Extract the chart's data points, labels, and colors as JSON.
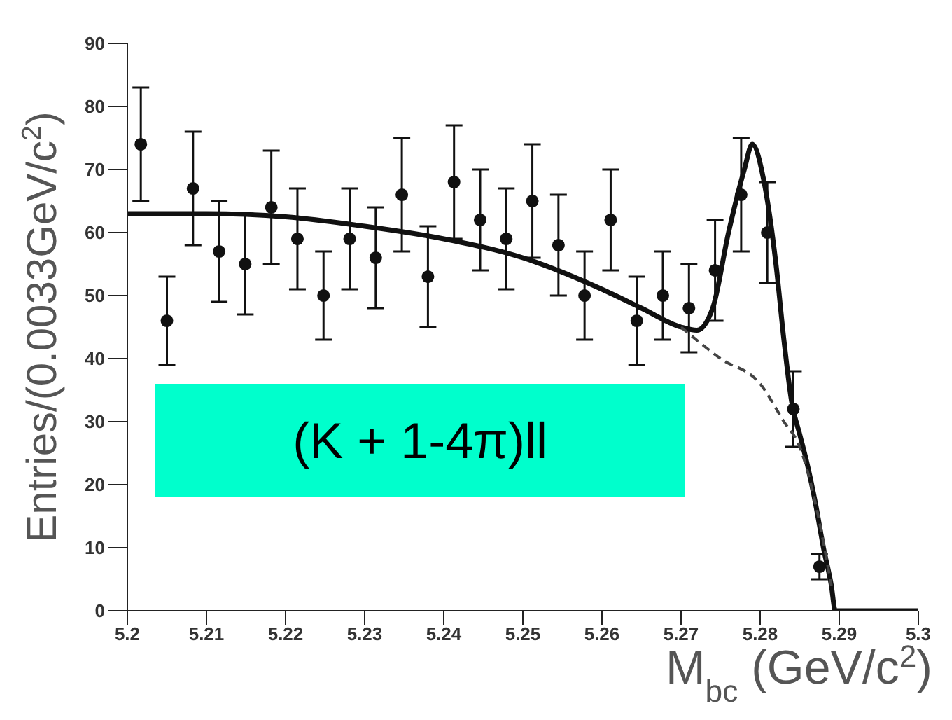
{
  "chart_data": {
    "type": "scatter",
    "xlabel": "M$_{bc}$ (GeV/c$^{2}$)",
    "ylabel": "Entries/(0.0033GeV/c$^{2}$)",
    "xlim": [
      5.2,
      5.3
    ],
    "xticks": [
      5.2,
      5.21,
      5.22,
      5.23,
      5.24,
      5.25,
      5.26,
      5.27,
      5.28,
      5.29,
      5.3
    ],
    "ylim": [
      0,
      90
    ],
    "yticks": [
      0,
      10,
      20,
      30,
      40,
      50,
      60,
      70,
      80,
      90
    ],
    "marker": "circle",
    "annotations": [
      "(K + 1-4π)ll"
    ],
    "series": [
      {
        "color": "#111111",
        "x": [
          5.2017,
          5.205,
          5.2083,
          5.2116,
          5.2149,
          5.2182,
          5.2215,
          5.2248,
          5.2281,
          5.2314,
          5.2347,
          5.238,
          5.2413,
          5.2446,
          5.2479,
          5.2512,
          5.2545,
          5.2578,
          5.2611,
          5.2644,
          5.2677,
          5.271,
          5.2743,
          5.2776,
          5.2809,
          5.2842,
          5.2875
        ],
        "values": [
          74,
          46,
          67,
          57,
          55,
          64,
          59,
          50,
          59,
          56,
          66,
          53,
          68,
          62,
          59,
          65,
          58,
          50,
          62,
          46,
          50,
          48,
          54,
          66,
          60,
          32,
          7
        ],
        "errors": [
          9,
          7,
          9,
          8,
          8,
          9,
          8,
          7,
          8,
          8,
          9,
          8,
          9,
          8,
          8,
          9,
          8,
          7,
          8,
          7,
          7,
          7,
          8,
          9,
          8,
          6,
          2
        ]
      },
      {
        "type": "line",
        "color": "#111111",
        "line_style": "solid",
        "marker": "none",
        "x": [
          5.2,
          5.21,
          5.22,
          5.23,
          5.24,
          5.25,
          5.26,
          5.265,
          5.27,
          5.272,
          5.274,
          5.276,
          5.278,
          5.279,
          5.2805,
          5.282,
          5.283,
          5.284,
          5.285,
          5.286,
          5.287,
          5.288,
          5.289,
          5.2895,
          5.3
        ],
        "values": [
          63,
          63,
          62.5,
          61,
          59,
          56,
          51,
          48,
          45,
          44.5,
          48,
          60,
          70,
          74,
          68,
          55,
          43,
          33,
          28,
          23,
          17,
          10,
          4,
          0,
          0
        ]
      },
      {
        "type": "line",
        "color": "#444444",
        "line_style": "dashed",
        "marker": "none",
        "x": [
          5.27,
          5.275,
          5.28,
          5.283,
          5.285,
          5.287,
          5.289
        ],
        "values": [
          45,
          40,
          36,
          30,
          26,
          17,
          4
        ]
      }
    ]
  }
}
